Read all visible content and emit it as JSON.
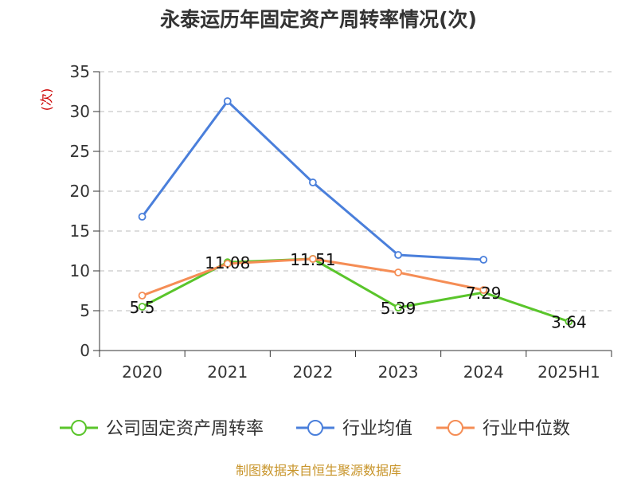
{
  "chart_data": {
    "type": "line",
    "title": "永泰运历年固定资产周转率情况(次)",
    "ylabel": "(次)",
    "categories": [
      "2020",
      "2021",
      "2022",
      "2023",
      "2024",
      "2025H1"
    ],
    "yticks": [
      "0",
      "5",
      "10",
      "15",
      "20",
      "25",
      "30",
      "35"
    ],
    "ylim": [
      0,
      35
    ],
    "grid": true,
    "legend_position": "bottom",
    "series": [
      {
        "name": "公司固定资产周转率",
        "color": "#5ac52b",
        "values": [
          5.5,
          11.08,
          11.51,
          5.39,
          7.29,
          3.64
        ],
        "labels": [
          "5.5",
          "11.08",
          "11.51",
          "5.39",
          "7.29",
          "3.64"
        ]
      },
      {
        "name": "行业均值",
        "color": "#4a7fdb",
        "values": [
          16.8,
          31.3,
          21.1,
          12.0,
          11.4,
          null
        ],
        "labels": []
      },
      {
        "name": "行业中位数",
        "color": "#f58d55",
        "values": [
          6.9,
          10.9,
          11.5,
          9.8,
          7.6,
          null
        ],
        "labels": []
      }
    ]
  },
  "source_text": "制图数据来自恒生聚源数据库",
  "colors": {
    "axis": "#333333",
    "grid": "#bbbbbb",
    "ylabel": "#cc0000",
    "source": "#c8952b"
  }
}
